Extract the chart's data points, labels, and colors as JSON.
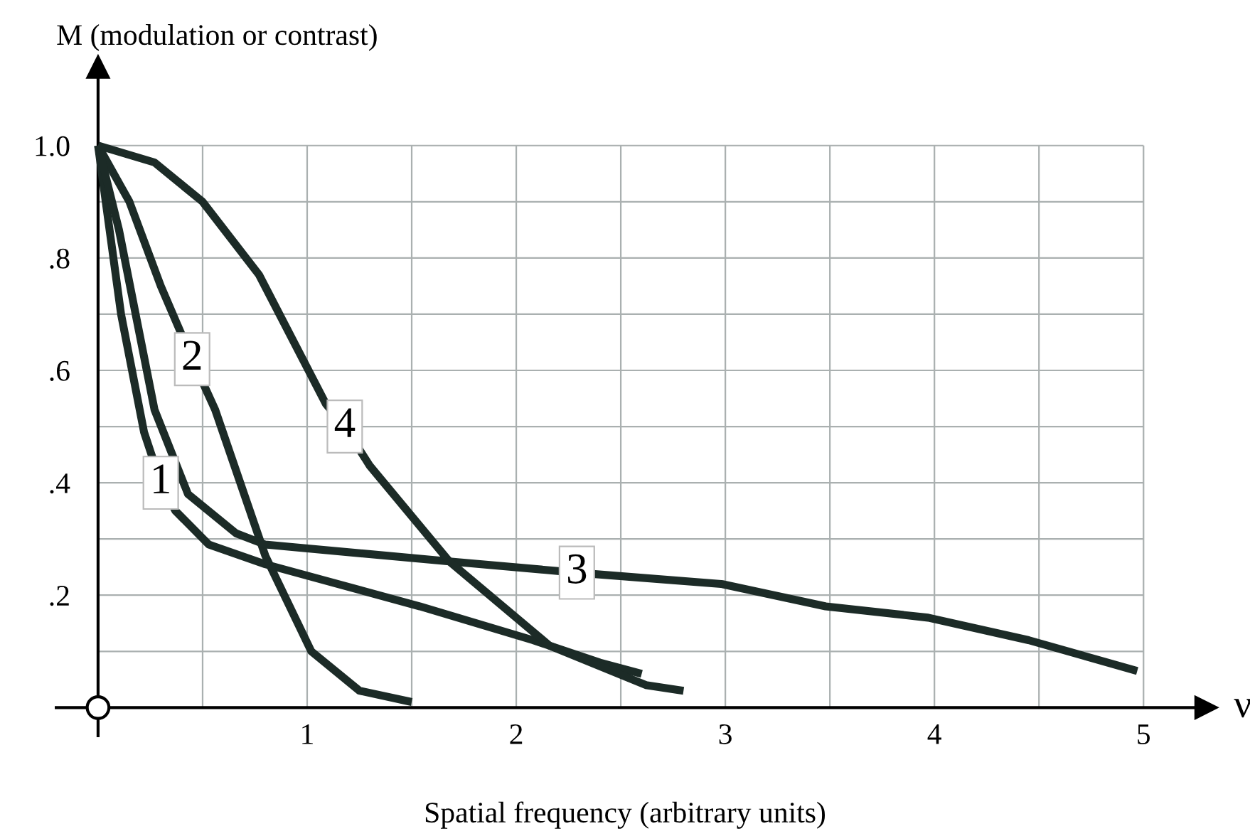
{
  "chart_data": {
    "type": "line",
    "ylabel": "M (modulation or contrast)",
    "xlabel": "Spatial frequency (arbitrary units)",
    "annotations": [
      "ν"
    ],
    "xlim": [
      -0.2,
      5.3
    ],
    "ylim": [
      -0.05,
      1.14
    ],
    "xticks": [
      {
        "value": 0.5,
        "label": null
      },
      1,
      {
        "value": 1.5,
        "label": null
      },
      2,
      {
        "value": 2.5,
        "label": null
      },
      3,
      {
        "value": 3.5,
        "label": null
      },
      4,
      {
        "value": 4.5,
        "label": null
      },
      5
    ],
    "yticks": [
      {
        "value": 0.1,
        "label": null
      },
      {
        "value": 0.2,
        "label": ".2"
      },
      {
        "value": 0.3,
        "label": null
      },
      {
        "value": 0.4,
        "label": ".4"
      },
      {
        "value": 0.5,
        "label": null
      },
      {
        "value": 0.6,
        "label": ".6"
      },
      {
        "value": 0.7,
        "label": null
      },
      {
        "value": 0.8,
        "label": ".8"
      },
      {
        "value": 0.9,
        "label": null
      },
      {
        "value": 1.0,
        "label": "1.0"
      }
    ],
    "grid": true,
    "legend": false,
    "marker": "none",
    "line_style": "solid",
    "series": [
      {
        "name": "1",
        "color": "#1c2b27",
        "x": [
          0,
          0.11,
          0.22,
          0.3,
          0.37,
          0.53,
          0.8,
          1.54,
          2.08,
          2.4,
          2.6
        ],
        "values": [
          1.0,
          0.7,
          0.49,
          0.4,
          0.35,
          0.29,
          0.255,
          0.18,
          0.12,
          0.08,
          0.06
        ]
      },
      {
        "name": "2",
        "color": "#1c2b27",
        "x": [
          0,
          0.15,
          0.3,
          0.45,
          0.56,
          0.8,
          1.02,
          1.25,
          1.5
        ],
        "values": [
          1.0,
          0.9,
          0.75,
          0.62,
          0.53,
          0.27,
          0.1,
          0.03,
          0.01
        ]
      },
      {
        "name": "3",
        "color": "#1c2b27",
        "x": [
          0,
          0.1,
          0.27,
          0.43,
          0.66,
          0.8,
          1.68,
          2.29,
          2.98,
          3.48,
          3.97,
          4.45,
          4.97
        ],
        "values": [
          1.0,
          0.85,
          0.53,
          0.38,
          0.31,
          0.29,
          0.26,
          0.24,
          0.22,
          0.18,
          0.16,
          0.12,
          0.065
        ]
      },
      {
        "name": "4",
        "color": "#1c2b27",
        "x": [
          0,
          0.27,
          0.5,
          0.77,
          1.09,
          1.18,
          1.3,
          1.68,
          2.16,
          2.62,
          2.8
        ],
        "values": [
          1.0,
          0.97,
          0.9,
          0.77,
          0.54,
          0.5,
          0.43,
          0.26,
          0.11,
          0.04,
          0.03
        ]
      }
    ]
  }
}
